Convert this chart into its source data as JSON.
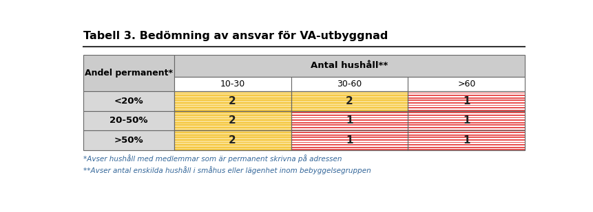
{
  "title": "Tabell 3. Bedömning av ansvar för VA-utbyggnad",
  "col_header_main": "Antal hushåll**",
  "col_headers": [
    "10-30",
    "30-60",
    ">60"
  ],
  "row_headers": [
    "<20%",
    "20-50%",
    ">50%"
  ],
  "values": [
    [
      "2",
      "2",
      "1"
    ],
    [
      "2",
      "1",
      "1"
    ],
    [
      "2",
      "1",
      "1"
    ]
  ],
  "cell_type": [
    [
      "yellow",
      "yellow",
      "red"
    ],
    [
      "yellow",
      "red",
      "red"
    ],
    [
      "yellow",
      "red",
      "red"
    ]
  ],
  "footnote1": "*Avser hushåll med medlemmar som är permanent skrivna på adressen",
  "footnote2": "**Avser antal enskilda hushåll i småhus eller lägenhet inom bebyggelsegruppen",
  "header_bg": "#CCCCCC",
  "subheader_bg": "#FFFFFF",
  "row_header_bg": "#D8D8D8",
  "yellow_base": "#F5C842",
  "yellow_stripe": "#FAE090",
  "red_base": "#E85050",
  "red_stripe": "#F5A0A0",
  "white_stripe": "#FFFFFF",
  "footnote_color": "#336699",
  "title_color": "#000000",
  "border_color": "#666666"
}
